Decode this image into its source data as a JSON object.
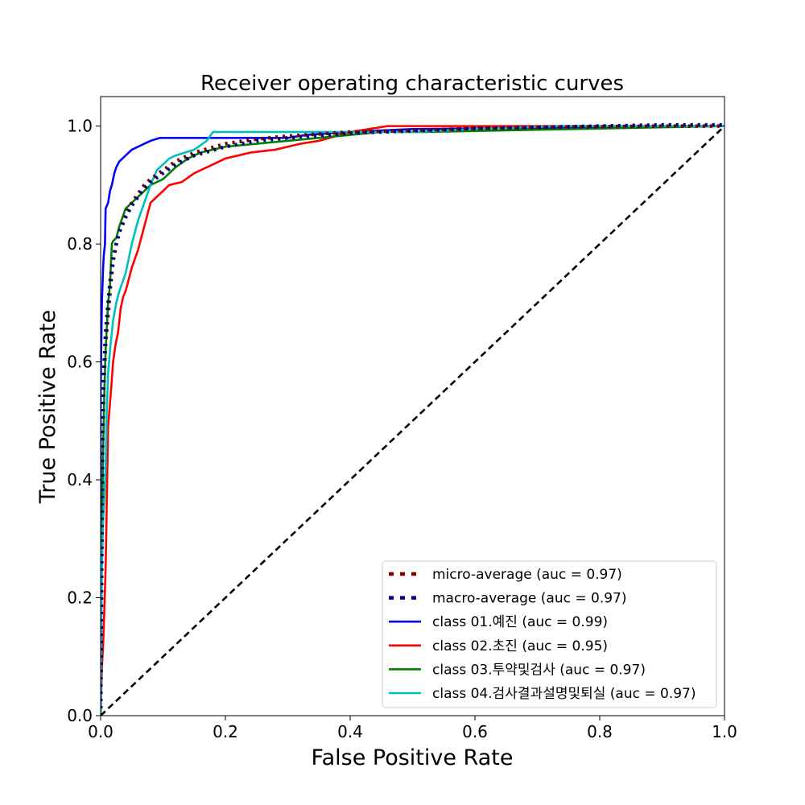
{
  "chart_data": {
    "type": "line",
    "title": "Receiver operating characteristic curves",
    "xlabel": "False Positive Rate",
    "ylabel": "True Positive Rate",
    "xlim": [
      0.0,
      1.0
    ],
    "ylim": [
      0.0,
      1.05
    ],
    "xticks": [
      "0.0",
      "0.2",
      "0.4",
      "0.6",
      "0.8",
      "1.0"
    ],
    "yticks": [
      "0.0",
      "0.2",
      "0.4",
      "0.6",
      "0.8",
      "1.0"
    ],
    "grid": false,
    "legend_position": "lower-right",
    "series": [
      {
        "name": "micro-average (auc = 0.97)",
        "color": "#800000",
        "style": "dotted",
        "x": [
          0.0,
          0.003,
          0.005,
          0.008,
          0.012,
          0.016,
          0.02,
          0.025,
          0.03,
          0.04,
          0.05,
          0.06,
          0.07,
          0.08,
          0.1,
          0.12,
          0.15,
          0.2,
          0.25,
          0.3,
          0.4,
          0.5,
          0.6,
          0.7,
          0.8,
          0.9,
          1.0
        ],
        "y": [
          0.0,
          0.45,
          0.56,
          0.63,
          0.68,
          0.73,
          0.77,
          0.8,
          0.82,
          0.85,
          0.87,
          0.885,
          0.9,
          0.91,
          0.925,
          0.94,
          0.955,
          0.97,
          0.978,
          0.983,
          0.99,
          0.993,
          0.996,
          0.998,
          0.999,
          1.0,
          1.0
        ]
      },
      {
        "name": "macro-average (auc = 0.97)",
        "color": "#000080",
        "style": "dotted",
        "x": [
          0.0,
          0.003,
          0.005,
          0.008,
          0.012,
          0.016,
          0.02,
          0.025,
          0.03,
          0.04,
          0.05,
          0.06,
          0.07,
          0.08,
          0.1,
          0.12,
          0.15,
          0.2,
          0.25,
          0.3,
          0.4,
          0.5,
          0.6,
          0.7,
          0.8,
          0.9,
          1.0
        ],
        "y": [
          0.0,
          0.48,
          0.58,
          0.65,
          0.7,
          0.745,
          0.775,
          0.8,
          0.82,
          0.845,
          0.865,
          0.88,
          0.895,
          0.905,
          0.92,
          0.935,
          0.95,
          0.965,
          0.975,
          0.98,
          0.988,
          0.992,
          0.996,
          0.998,
          1.0,
          1.002,
          1.002
        ]
      },
      {
        "name": "class 01.예진 (auc = 0.99)",
        "color": "#0000ff",
        "style": "solid",
        "x": [
          0.0,
          0.0,
          0.002,
          0.004,
          0.005,
          0.007,
          0.008,
          0.01,
          0.012,
          0.015,
          0.018,
          0.02,
          0.022,
          0.025,
          0.03,
          0.035,
          0.04,
          0.05,
          0.06,
          0.07,
          0.08,
          0.095,
          0.12,
          0.15,
          0.2,
          0.3,
          0.33,
          0.4,
          0.5,
          1.0
        ],
        "y": [
          0.0,
          0.55,
          0.7,
          0.76,
          0.78,
          0.8,
          0.86,
          0.865,
          0.87,
          0.89,
          0.9,
          0.91,
          0.92,
          0.93,
          0.94,
          0.945,
          0.95,
          0.96,
          0.965,
          0.97,
          0.975,
          0.98,
          0.98,
          0.98,
          0.98,
          0.98,
          0.985,
          0.99,
          0.995,
          1.0
        ]
      },
      {
        "name": "class 02.초진 (auc = 0.95)",
        "color": "#ff0000",
        "style": "solid",
        "x": [
          0.0,
          0.002,
          0.004,
          0.006,
          0.008,
          0.01,
          0.012,
          0.015,
          0.018,
          0.02,
          0.024,
          0.028,
          0.032,
          0.036,
          0.04,
          0.045,
          0.05,
          0.06,
          0.065,
          0.07,
          0.08,
          0.09,
          0.1,
          0.11,
          0.13,
          0.15,
          0.17,
          0.2,
          0.24,
          0.28,
          0.32,
          0.35,
          0.4,
          0.46,
          0.5,
          0.6,
          1.0
        ],
        "y": [
          0.0,
          0.08,
          0.12,
          0.18,
          0.25,
          0.37,
          0.49,
          0.53,
          0.57,
          0.6,
          0.63,
          0.65,
          0.69,
          0.71,
          0.72,
          0.74,
          0.76,
          0.79,
          0.81,
          0.83,
          0.87,
          0.88,
          0.89,
          0.9,
          0.905,
          0.92,
          0.93,
          0.945,
          0.955,
          0.96,
          0.97,
          0.975,
          0.99,
          1.0,
          1.0,
          1.0,
          1.0
        ]
      },
      {
        "name": "class 03.투약및검사 (auc = 0.97)",
        "color": "#008000",
        "style": "solid",
        "x": [
          0.0,
          0.002,
          0.004,
          0.006,
          0.008,
          0.01,
          0.012,
          0.015,
          0.018,
          0.02,
          0.025,
          0.03,
          0.035,
          0.04,
          0.05,
          0.06,
          0.07,
          0.08,
          0.09,
          0.1,
          0.12,
          0.14,
          0.16,
          0.18,
          0.2,
          0.25,
          0.3,
          0.35,
          0.4,
          0.45,
          0.52,
          1.0
        ],
        "y": [
          0.0,
          0.3,
          0.45,
          0.55,
          0.62,
          0.66,
          0.7,
          0.73,
          0.8,
          0.805,
          0.81,
          0.83,
          0.845,
          0.86,
          0.87,
          0.88,
          0.89,
          0.9,
          0.905,
          0.91,
          0.93,
          0.945,
          0.955,
          0.96,
          0.965,
          0.97,
          0.975,
          0.98,
          0.985,
          0.99,
          0.99,
          1.0
        ]
      },
      {
        "name": "class 04.검사결과설명및퇴실 (auc = 0.97)",
        "color": "#00bfbf",
        "style": "solid",
        "x": [
          0.0,
          0.002,
          0.004,
          0.006,
          0.008,
          0.01,
          0.012,
          0.015,
          0.02,
          0.025,
          0.03,
          0.04,
          0.05,
          0.06,
          0.07,
          0.08,
          0.09,
          0.1,
          0.11,
          0.12,
          0.15,
          0.17,
          0.18,
          0.2,
          0.3,
          0.4,
          0.5,
          0.6,
          0.74,
          1.0
        ],
        "y": [
          0.0,
          0.25,
          0.33,
          0.37,
          0.42,
          0.52,
          0.58,
          0.62,
          0.67,
          0.7,
          0.72,
          0.75,
          0.8,
          0.84,
          0.87,
          0.9,
          0.925,
          0.935,
          0.945,
          0.95,
          0.96,
          0.975,
          0.99,
          0.99,
          0.99,
          0.99,
          0.99,
          0.995,
          1.0,
          1.0
        ]
      }
    ],
    "reference_line": {
      "color": "#000000",
      "style": "dashed",
      "x": [
        0.0,
        1.0
      ],
      "y": [
        0.0,
        1.0
      ]
    }
  }
}
